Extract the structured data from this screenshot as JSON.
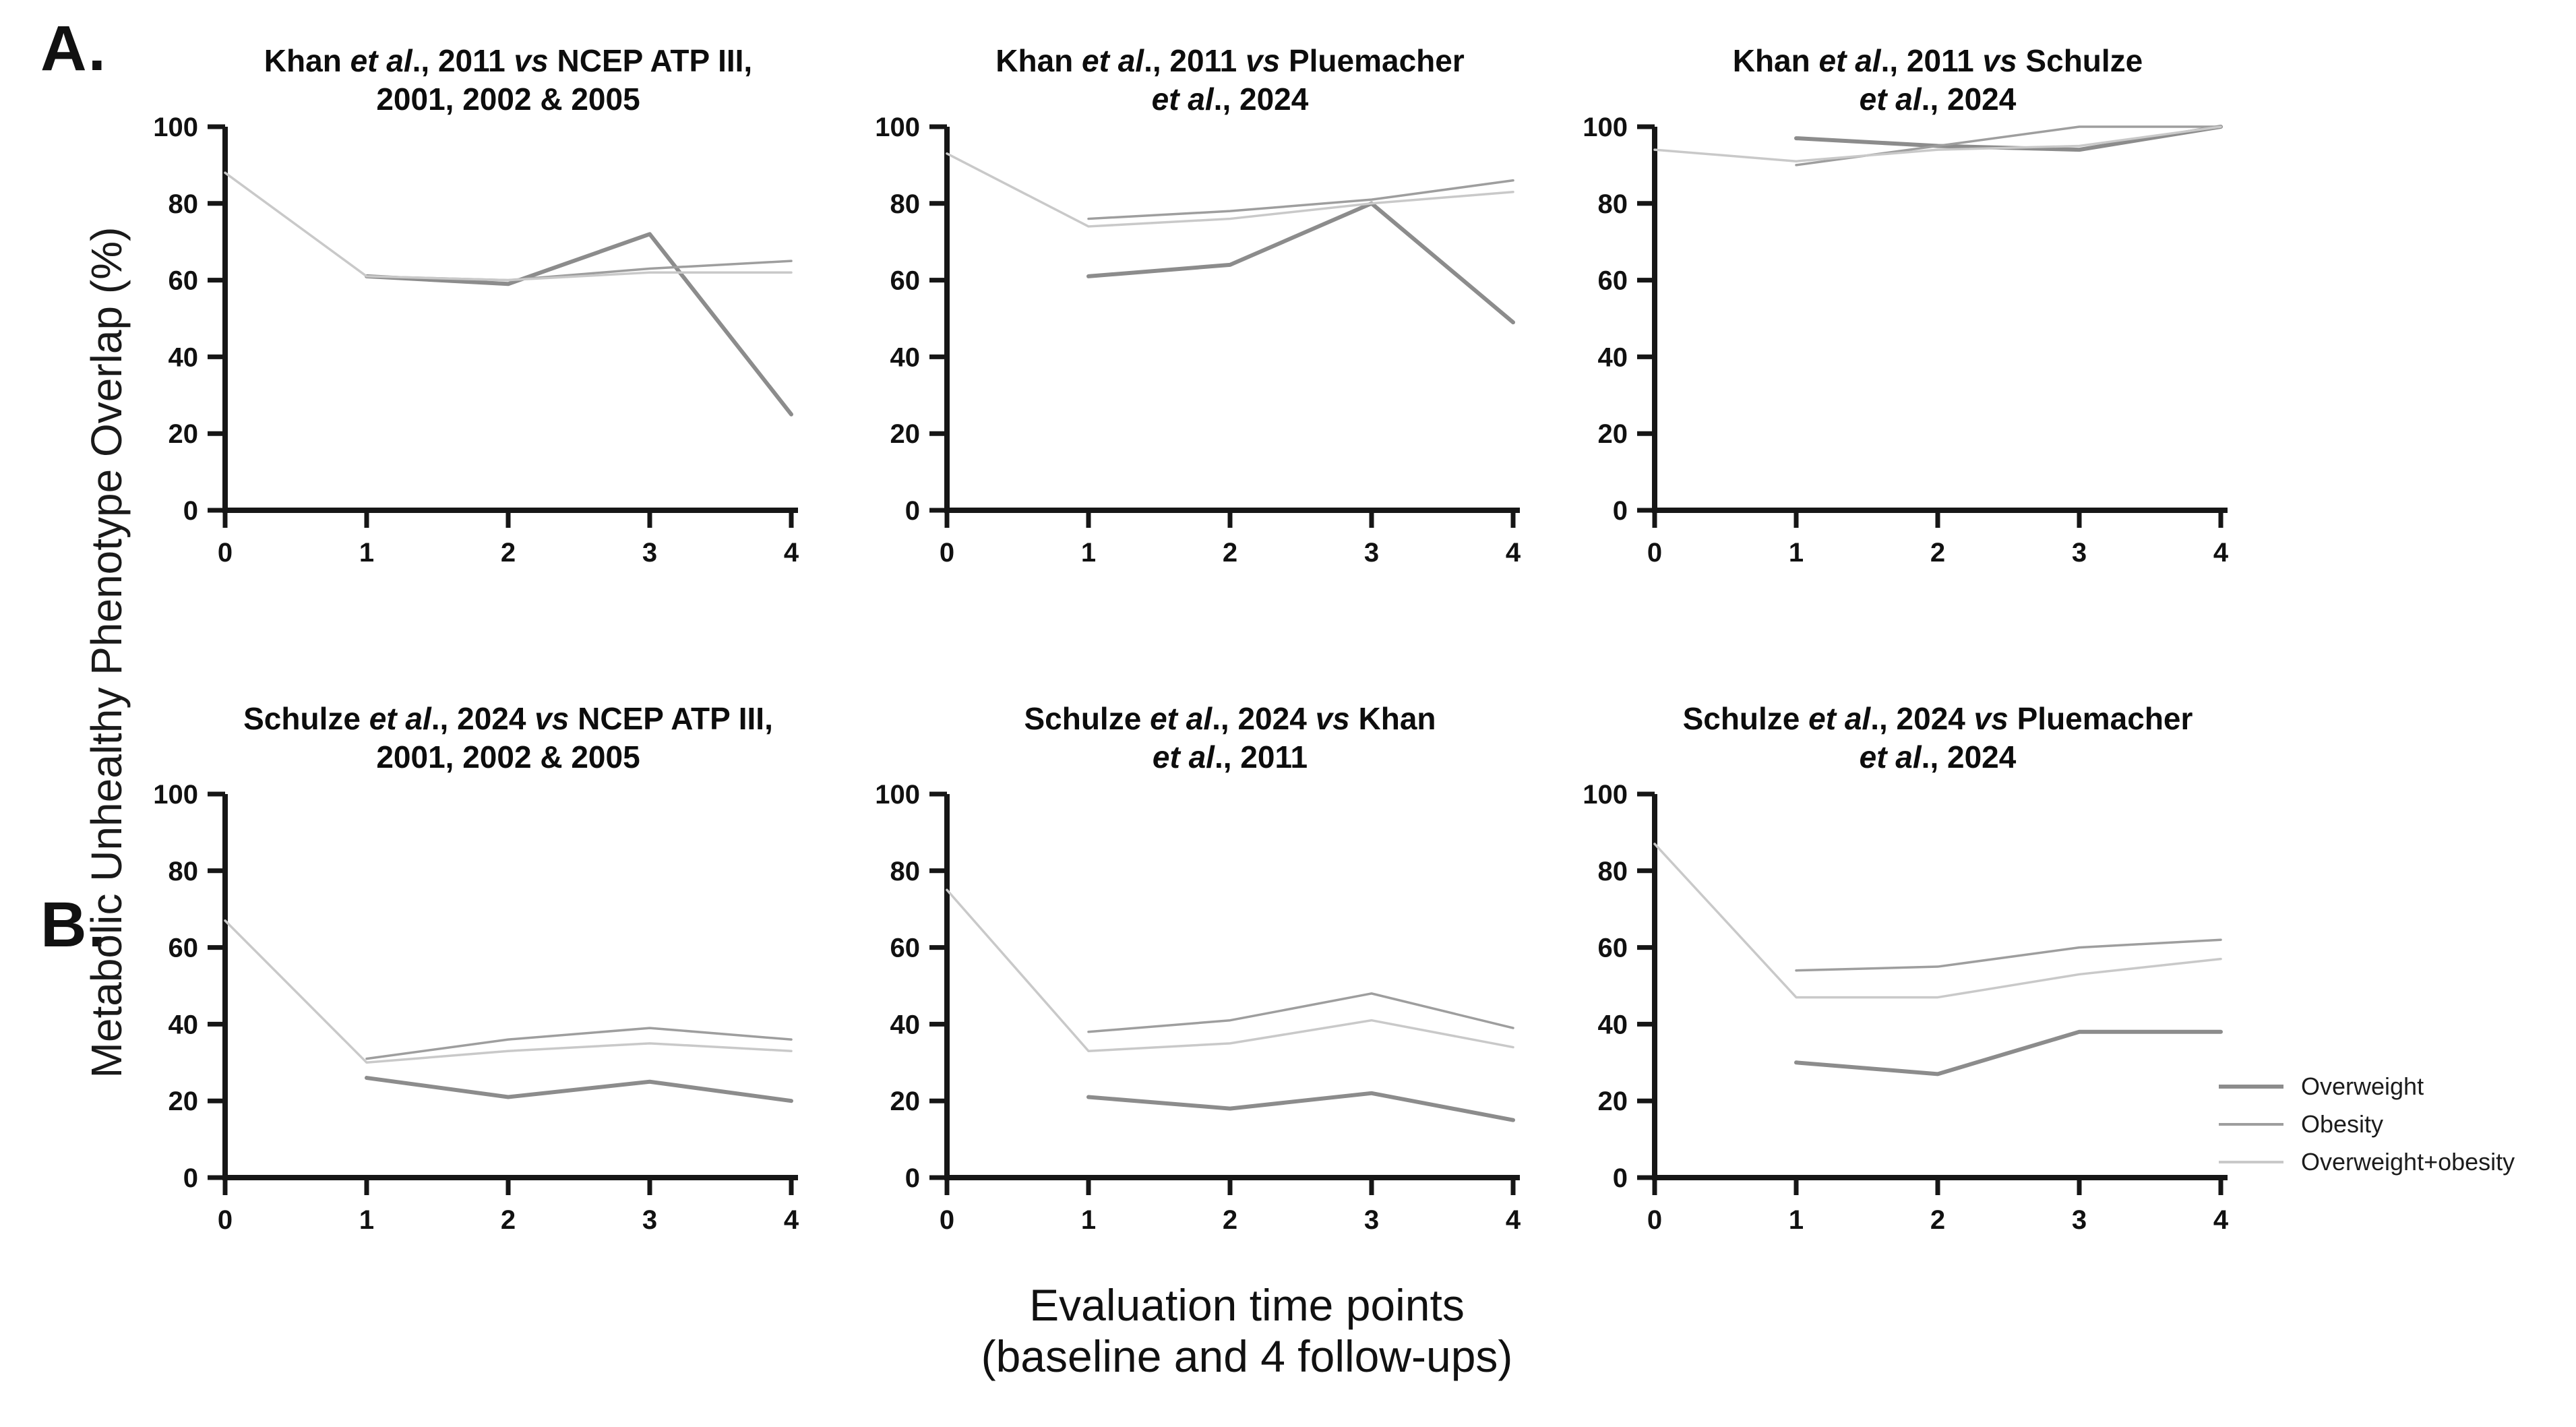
{
  "figure": {
    "panel_a_label": "A.",
    "panel_b_label": "B.",
    "y_axis_label": "Metabolic Unhealthy Phenotype Overlap (%)",
    "x_axis_label_line1": "Evaluation time points",
    "x_axis_label_line2": "(baseline and 4 follow-ups)"
  },
  "legend": {
    "position": "right",
    "items": [
      {
        "label": "Overweight",
        "color": "#8c8c8c",
        "thickness": 6
      },
      {
        "label": "Obesity",
        "color": "#9e9e9e",
        "thickness": 3.5
      },
      {
        "label": "Overweight+obesity",
        "color": "#c9c9c9",
        "thickness": 3.5
      }
    ]
  },
  "chart_data": [
    {
      "id": "a1",
      "panel": "A",
      "type": "line",
      "title_lines": [
        "Khan *et al*., 2011 *vs* NCEP ATP III,",
        "2001, 2002 & 2005"
      ],
      "x": [
        0,
        1,
        2,
        3,
        4
      ],
      "x_ticks": [
        0,
        1,
        2,
        3,
        4
      ],
      "y_ticks": [
        0,
        20,
        40,
        60,
        80,
        100
      ],
      "ylim": [
        0,
        100
      ],
      "grid": false,
      "series": [
        {
          "name": "Overweight",
          "values": [
            null,
            61,
            59,
            72,
            25
          ]
        },
        {
          "name": "Obesity",
          "values": [
            null,
            61,
            60,
            63,
            65
          ]
        },
        {
          "name": "Overweight+obesity",
          "values": [
            88,
            61,
            60,
            62,
            62
          ]
        }
      ]
    },
    {
      "id": "a2",
      "panel": "A",
      "type": "line",
      "title_lines": [
        "Khan *et al*., 2011 *vs* Pluemacher",
        "*et al*., 2024"
      ],
      "x": [
        0,
        1,
        2,
        3,
        4
      ],
      "x_ticks": [
        0,
        1,
        2,
        3,
        4
      ],
      "y_ticks": [
        0,
        20,
        40,
        60,
        80,
        100
      ],
      "ylim": [
        0,
        100
      ],
      "grid": false,
      "series": [
        {
          "name": "Overweight",
          "values": [
            null,
            61,
            64,
            80,
            49
          ]
        },
        {
          "name": "Obesity",
          "values": [
            null,
            76,
            78,
            81,
            86
          ]
        },
        {
          "name": "Overweight+obesity",
          "values": [
            93,
            74,
            76,
            80,
            83
          ]
        }
      ]
    },
    {
      "id": "a3",
      "panel": "A",
      "type": "line",
      "title_lines": [
        "Khan *et al*., 2011 *vs* Schulze",
        "*et al*., 2024"
      ],
      "x": [
        0,
        1,
        2,
        3,
        4
      ],
      "x_ticks": [
        0,
        1,
        2,
        3,
        4
      ],
      "y_ticks": [
        0,
        20,
        40,
        60,
        80,
        100
      ],
      "ylim": [
        0,
        100
      ],
      "grid": false,
      "series": [
        {
          "name": "Overweight",
          "values": [
            null,
            97,
            95,
            94,
            100
          ]
        },
        {
          "name": "Obesity",
          "values": [
            null,
            90,
            95,
            100,
            100
          ]
        },
        {
          "name": "Overweight+obesity",
          "values": [
            94,
            91,
            94,
            95,
            100
          ]
        }
      ]
    },
    {
      "id": "b1",
      "panel": "B",
      "type": "line",
      "title_lines": [
        "Schulze *et al*., 2024 *vs* NCEP ATP III,",
        "2001, 2002 & 2005"
      ],
      "x": [
        0,
        1,
        2,
        3,
        4
      ],
      "x_ticks": [
        0,
        1,
        2,
        3,
        4
      ],
      "y_ticks": [
        0,
        20,
        40,
        60,
        80,
        100
      ],
      "ylim": [
        0,
        100
      ],
      "grid": false,
      "series": [
        {
          "name": "Overweight",
          "values": [
            null,
            26,
            21,
            25,
            20
          ]
        },
        {
          "name": "Obesity",
          "values": [
            null,
            31,
            36,
            39,
            36
          ]
        },
        {
          "name": "Overweight+obesity",
          "values": [
            67,
            30,
            33,
            35,
            33
          ]
        }
      ]
    },
    {
      "id": "b2",
      "panel": "B",
      "type": "line",
      "title_lines": [
        "Schulze *et al*., 2024 *vs* Khan",
        "*et al*., 2011"
      ],
      "x": [
        0,
        1,
        2,
        3,
        4
      ],
      "x_ticks": [
        0,
        1,
        2,
        3,
        4
      ],
      "y_ticks": [
        0,
        20,
        40,
        60,
        80,
        100
      ],
      "ylim": [
        0,
        100
      ],
      "grid": false,
      "series": [
        {
          "name": "Overweight",
          "values": [
            null,
            21,
            18,
            22,
            15
          ]
        },
        {
          "name": "Obesity",
          "values": [
            null,
            38,
            41,
            48,
            39
          ]
        },
        {
          "name": "Overweight+obesity",
          "values": [
            75,
            33,
            35,
            41,
            34
          ]
        }
      ]
    },
    {
      "id": "b3",
      "panel": "B",
      "type": "line",
      "title_lines": [
        "Schulze *et al*., 2024 *vs* Pluemacher",
        "*et al*., 2024"
      ],
      "x": [
        0,
        1,
        2,
        3,
        4
      ],
      "x_ticks": [
        0,
        1,
        2,
        3,
        4
      ],
      "y_ticks": [
        0,
        20,
        40,
        60,
        80,
        100
      ],
      "ylim": [
        0,
        100
      ],
      "grid": false,
      "series": [
        {
          "name": "Overweight",
          "values": [
            null,
            30,
            27,
            38,
            38
          ]
        },
        {
          "name": "Obesity",
          "values": [
            null,
            54,
            55,
            60,
            62
          ]
        },
        {
          "name": "Overweight+obesity",
          "values": [
            87,
            47,
            47,
            53,
            57
          ]
        }
      ]
    }
  ]
}
